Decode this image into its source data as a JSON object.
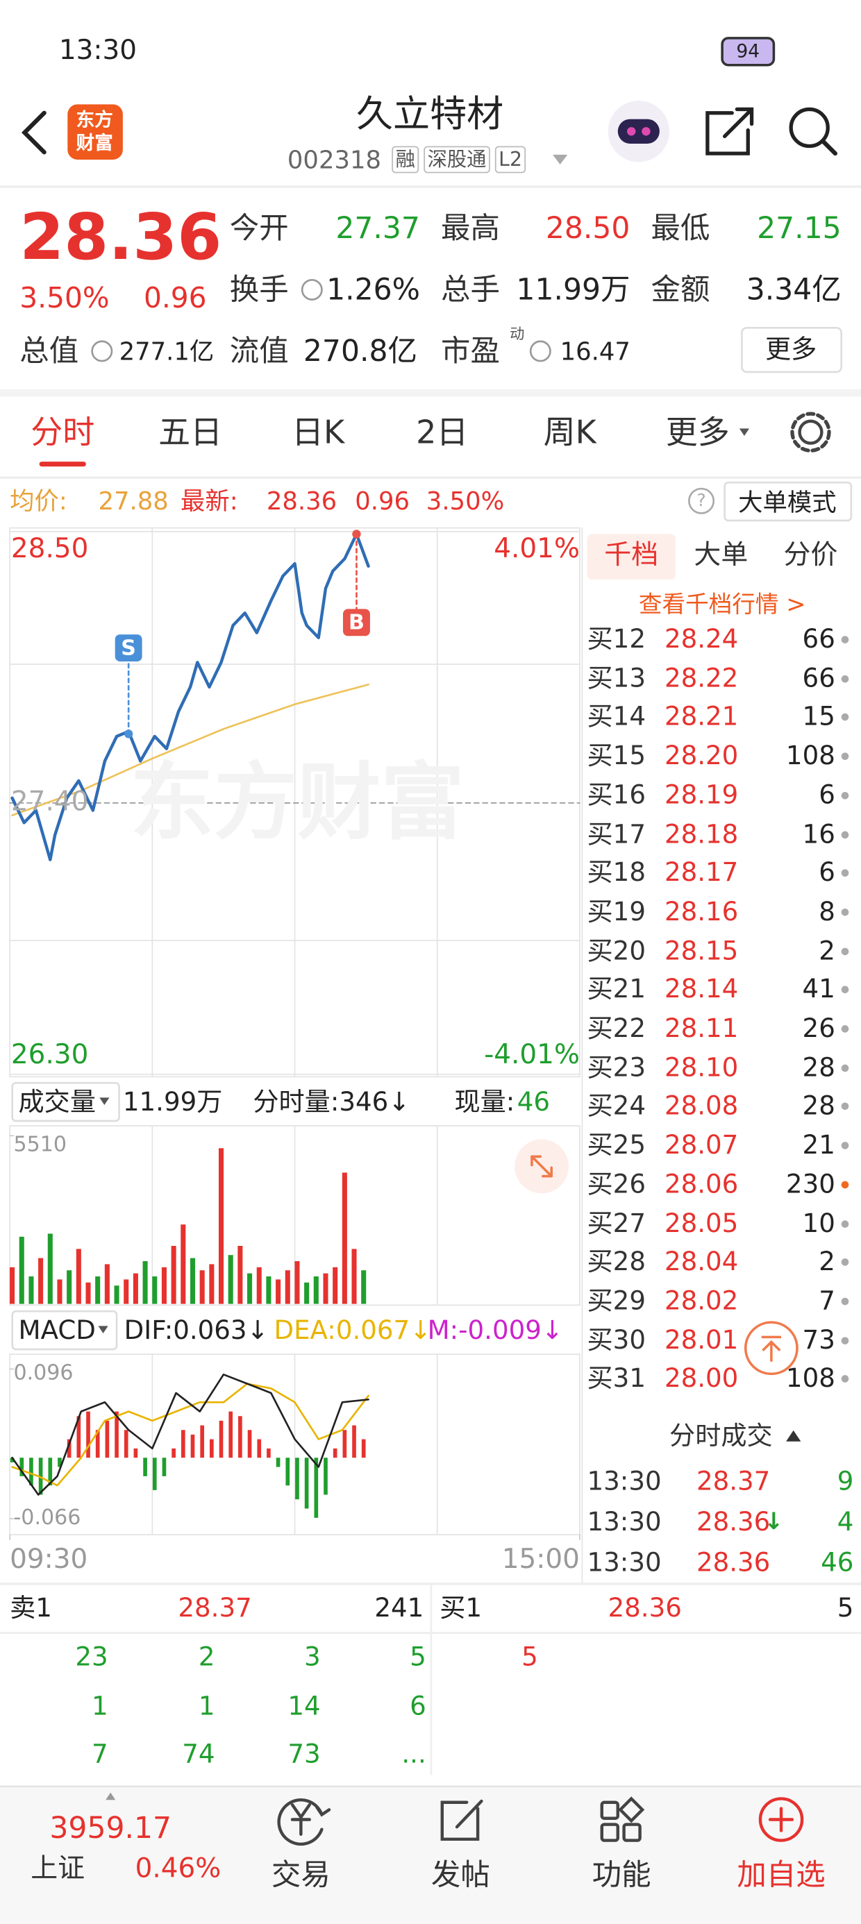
{
  "status_bar": {
    "time": "13:30",
    "battery": "94"
  },
  "header": {
    "logo": [
      "东方",
      "财富"
    ],
    "title": "久立特材",
    "code": "002318",
    "tags": [
      "融",
      "深股通",
      "L2"
    ]
  },
  "quote": {
    "price": "28.36",
    "change_pct": "3.50%",
    "change": "0.96",
    "stats": [
      {
        "label": "今开",
        "value": "27.37",
        "color": "#1f9e2d"
      },
      {
        "label": "最高",
        "value": "28.50",
        "color": "#e6322e"
      },
      {
        "label": "最低",
        "value": "27.15",
        "color": "#1f9e2d"
      },
      {
        "label": "换手",
        "value": "1.26%",
        "color": "#222222"
      },
      {
        "label": "总手",
        "value": "11.99万",
        "color": "#222222"
      },
      {
        "label": "金额",
        "value": "3.34亿",
        "color": "#222222"
      },
      {
        "label": "总值",
        "value": "277.1亿",
        "color": "#222222"
      },
      {
        "label": "流值",
        "value": "270.8亿",
        "color": "#222222"
      },
      {
        "label": "市盈",
        "value": "16.47",
        "sup": "动",
        "color": "#222222"
      }
    ],
    "more": "更多"
  },
  "tabs": [
    "分时",
    "五日",
    "日K",
    "2日",
    "周K",
    "更多"
  ],
  "info_bar": {
    "avg_label": "均价:",
    "avg": "27.88",
    "latest_label": "最新:",
    "latest": "28.36",
    "change": "0.96",
    "change_pct": "3.50%",
    "help": "?",
    "mode_button": "大单模式"
  },
  "price_chart": {
    "type": "line",
    "xlim": [
      0,
      240
    ],
    "ylim": [
      26.3,
      28.5
    ],
    "yticks": [
      {
        "value": 28.5,
        "label": "28.50"
      },
      {
        "value": 27.4,
        "label": "27.40"
      },
      {
        "value": 26.3,
        "label": "26.30"
      }
    ],
    "pct_labels": [
      "4.01%",
      "-4.01%"
    ],
    "xticks": [
      {
        "value": 0,
        "label": "09:30"
      },
      {
        "value": 240,
        "label": "15:00"
      }
    ],
    "watermark": "东方财富",
    "price_line": {
      "color": "#2f6db5",
      "x": [
        1,
        6,
        11,
        17,
        19,
        24,
        29,
        35,
        40,
        45,
        50,
        55,
        61,
        66,
        71,
        76,
        79,
        84,
        89,
        94,
        99,
        104,
        110,
        115,
        120,
        123,
        125,
        130,
        133,
        136,
        141,
        146,
        151
      ],
      "values": [
        27.42,
        27.32,
        27.37,
        27.17,
        27.27,
        27.42,
        27.49,
        27.37,
        27.57,
        27.67,
        27.69,
        27.57,
        27.67,
        27.62,
        27.77,
        27.87,
        27.97,
        27.87,
        27.97,
        28.12,
        28.17,
        28.09,
        28.22,
        28.32,
        28.37,
        28.17,
        28.12,
        28.07,
        28.27,
        28.34,
        28.39,
        28.49,
        28.36
      ]
    },
    "avg_line": {
      "color": "#eec25a",
      "x": [
        1,
        30,
        60,
        90,
        120,
        151
      ],
      "values": [
        27.35,
        27.45,
        27.58,
        27.7,
        27.8,
        27.88
      ]
    },
    "markers": [
      {
        "label": "S",
        "x": 50,
        "value": 27.68,
        "color": "#4a90d9"
      },
      {
        "label": "B",
        "x": 146,
        "value": 28.49,
        "color": "#e8534a"
      }
    ]
  },
  "volume_header": {
    "label": "成交量",
    "total": "11.99万",
    "period": "分时量:346↓",
    "current_label": "现量:",
    "current": "46"
  },
  "volume_chart": {
    "type": "bar",
    "xlim": [
      0,
      240
    ],
    "ylim": [
      0,
      5510
    ],
    "yticks": [
      5510
    ],
    "x": [
      1,
      5,
      9,
      13,
      17,
      21,
      25,
      29,
      33,
      37,
      41,
      45,
      49,
      53,
      57,
      61,
      65,
      69,
      73,
      77,
      81,
      85,
      89,
      93,
      97,
      101,
      105,
      109,
      113,
      117,
      121,
      125,
      129,
      133,
      137,
      141,
      145,
      149
    ],
    "values": [
      1200,
      2200,
      900,
      1500,
      2300,
      800,
      1100,
      1800,
      700,
      900,
      1300,
      600,
      800,
      1000,
      1400,
      900,
      1200,
      1900,
      2600,
      1500,
      1100,
      1300,
      5100,
      1600,
      1900,
      1000,
      1200,
      900,
      800,
      1100,
      1400,
      700,
      900,
      1000,
      1200,
      4300,
      1800,
      1100
    ],
    "colors": [
      "#e6322e",
      "#1f9e2d",
      "#1f9e2d",
      "#e6322e",
      "#1f9e2d",
      "#e6322e",
      "#1f9e2d",
      "#e6322e",
      "#e6322e",
      "#1f9e2d",
      "#e6322e",
      "#1f9e2d",
      "#e6322e",
      "#e6322e",
      "#1f9e2d",
      "#1f9e2d",
      "#e6322e",
      "#e6322e",
      "#e6322e",
      "#1f9e2d",
      "#e6322e",
      "#e6322e",
      "#e6322e",
      "#1f9e2d",
      "#e6322e",
      "#1f9e2d",
      "#e6322e",
      "#1f9e2d",
      "#e6322e",
      "#e6322e",
      "#e6322e",
      "#1f9e2d",
      "#1f9e2d",
      "#e6322e",
      "#e6322e",
      "#e6322e",
      "#e6322e",
      "#1f9e2d"
    ]
  },
  "macd_header": {
    "label": "MACD",
    "dif": "DIF:0.063↓",
    "dea": "DEA:0.067↓",
    "m": "M:-0.009↓"
  },
  "macd_chart": {
    "type": "bar",
    "xlim": [
      0,
      240
    ],
    "ylim": [
      -0.066,
      0.096
    ],
    "yticks": [
      0.096,
      -0.066
    ],
    "pos_color": "#e6322e",
    "neg_color": "#1f9e2d",
    "x": [
      1,
      5,
      9,
      13,
      17,
      21,
      25,
      29,
      33,
      37,
      41,
      45,
      49,
      53,
      57,
      61,
      65,
      69,
      73,
      77,
      81,
      85,
      89,
      93,
      97,
      101,
      105,
      109,
      113,
      117,
      121,
      125,
      129,
      133,
      137,
      141,
      145,
      149
    ],
    "values": [
      -0.005,
      -0.02,
      -0.03,
      -0.04,
      -0.03,
      -0.01,
      0.02,
      0.045,
      0.05,
      0.03,
      0.04,
      0.05,
      0.03,
      0.01,
      -0.02,
      -0.035,
      -0.02,
      0.01,
      0.03,
      0.025,
      0.035,
      0.02,
      0.04,
      0.05,
      0.045,
      0.03,
      0.02,
      0.01,
      -0.01,
      -0.03,
      -0.045,
      -0.055,
      -0.065,
      -0.04,
      0.01,
      0.03,
      0.035,
      0.02
    ],
    "dif": {
      "color": "#222222",
      "x": [
        1,
        12,
        20,
        30,
        40,
        50,
        60,
        70,
        80,
        90,
        100,
        110,
        120,
        130,
        140,
        151
      ],
      "values": [
        0,
        -0.04,
        -0.02,
        0.05,
        0.06,
        0.03,
        0.01,
        0.07,
        0.05,
        0.09,
        0.08,
        0.07,
        0.02,
        -0.01,
        0.06,
        0.063
      ]
    },
    "dea": {
      "color": "#e8b400",
      "x": [
        1,
        12,
        20,
        30,
        40,
        50,
        60,
        70,
        80,
        90,
        100,
        110,
        120,
        130,
        140,
        151
      ],
      "values": [
        -0.01,
        -0.02,
        -0.03,
        0,
        0.04,
        0.05,
        0.04,
        0.05,
        0.06,
        0.06,
        0.08,
        0.075,
        0.06,
        0.02,
        0.03,
        0.067
      ]
    }
  },
  "order_book": {
    "tabs": [
      "千档",
      "大单",
      "分价"
    ],
    "link": "查看千档行情 >",
    "rows": [
      {
        "label": "买12",
        "price": "28.24",
        "volume": "66",
        "dot": "#aaaaaa"
      },
      {
        "label": "买13",
        "price": "28.22",
        "volume": "66",
        "dot": "#aaaaaa"
      },
      {
        "label": "买14",
        "price": "28.21",
        "volume": "15",
        "dot": "#aaaaaa"
      },
      {
        "label": "买15",
        "price": "28.20",
        "volume": "108",
        "dot": "#aaaaaa"
      },
      {
        "label": "买16",
        "price": "28.19",
        "volume": "6",
        "dot": "#aaaaaa"
      },
      {
        "label": "买17",
        "price": "28.18",
        "volume": "16",
        "dot": "#aaaaaa"
      },
      {
        "label": "买18",
        "price": "28.17",
        "volume": "6",
        "dot": "#aaaaaa"
      },
      {
        "label": "买19",
        "price": "28.16",
        "volume": "8",
        "dot": "#aaaaaa"
      },
      {
        "label": "买20",
        "price": "28.15",
        "volume": "2",
        "dot": "#aaaaaa"
      },
      {
        "label": "买21",
        "price": "28.14",
        "volume": "41",
        "dot": "#aaaaaa"
      },
      {
        "label": "买22",
        "price": "28.11",
        "volume": "26",
        "dot": "#aaaaaa"
      },
      {
        "label": "买23",
        "price": "28.10",
        "volume": "28",
        "dot": "#aaaaaa"
      },
      {
        "label": "买24",
        "price": "28.08",
        "volume": "28",
        "dot": "#aaaaaa"
      },
      {
        "label": "买25",
        "price": "28.07",
        "volume": "21",
        "dot": "#aaaaaa"
      },
      {
        "label": "买26",
        "price": "28.06",
        "volume": "230",
        "dot": "#f06a1e"
      },
      {
        "label": "买27",
        "price": "28.05",
        "volume": "10",
        "dot": "#aaaaaa"
      },
      {
        "label": "买28",
        "price": "28.04",
        "volume": "2",
        "dot": "#aaaaaa"
      },
      {
        "label": "买29",
        "price": "28.02",
        "volume": "7",
        "dot": "#aaaaaa"
      },
      {
        "label": "买30",
        "price": "28.01",
        "volume": "73",
        "dot": "#aaaaaa"
      },
      {
        "label": "买31",
        "price": "28.00",
        "volume": "108",
        "dot": "#aaaaaa"
      }
    ]
  },
  "trades": {
    "title": "分时成交",
    "rows": [
      {
        "time": "13:30",
        "price": "28.37",
        "volume": "9"
      },
      {
        "time": "13:30",
        "price": "28.36",
        "arrow": "↓",
        "volume": "4"
      },
      {
        "time": "13:30",
        "price": "28.36",
        "volume": "46"
      }
    ]
  },
  "level1": {
    "sell": {
      "label": "卖1",
      "price": "28.37",
      "volume": "241",
      "queue": [
        [
          "23",
          "2",
          "3",
          "5"
        ],
        [
          "1",
          "1",
          "14",
          "6"
        ],
        [
          "7",
          "74",
          "73",
          "..."
        ]
      ]
    },
    "buy": {
      "label": "买1",
      "price": "28.36",
      "volume": "5",
      "queue": [
        [
          "5"
        ]
      ]
    }
  },
  "bottom_nav": {
    "index": {
      "value": "3959.17",
      "name": "上证",
      "change": "0.46%"
    },
    "items": [
      "交易",
      "发帖",
      "功能",
      "加自选"
    ]
  }
}
